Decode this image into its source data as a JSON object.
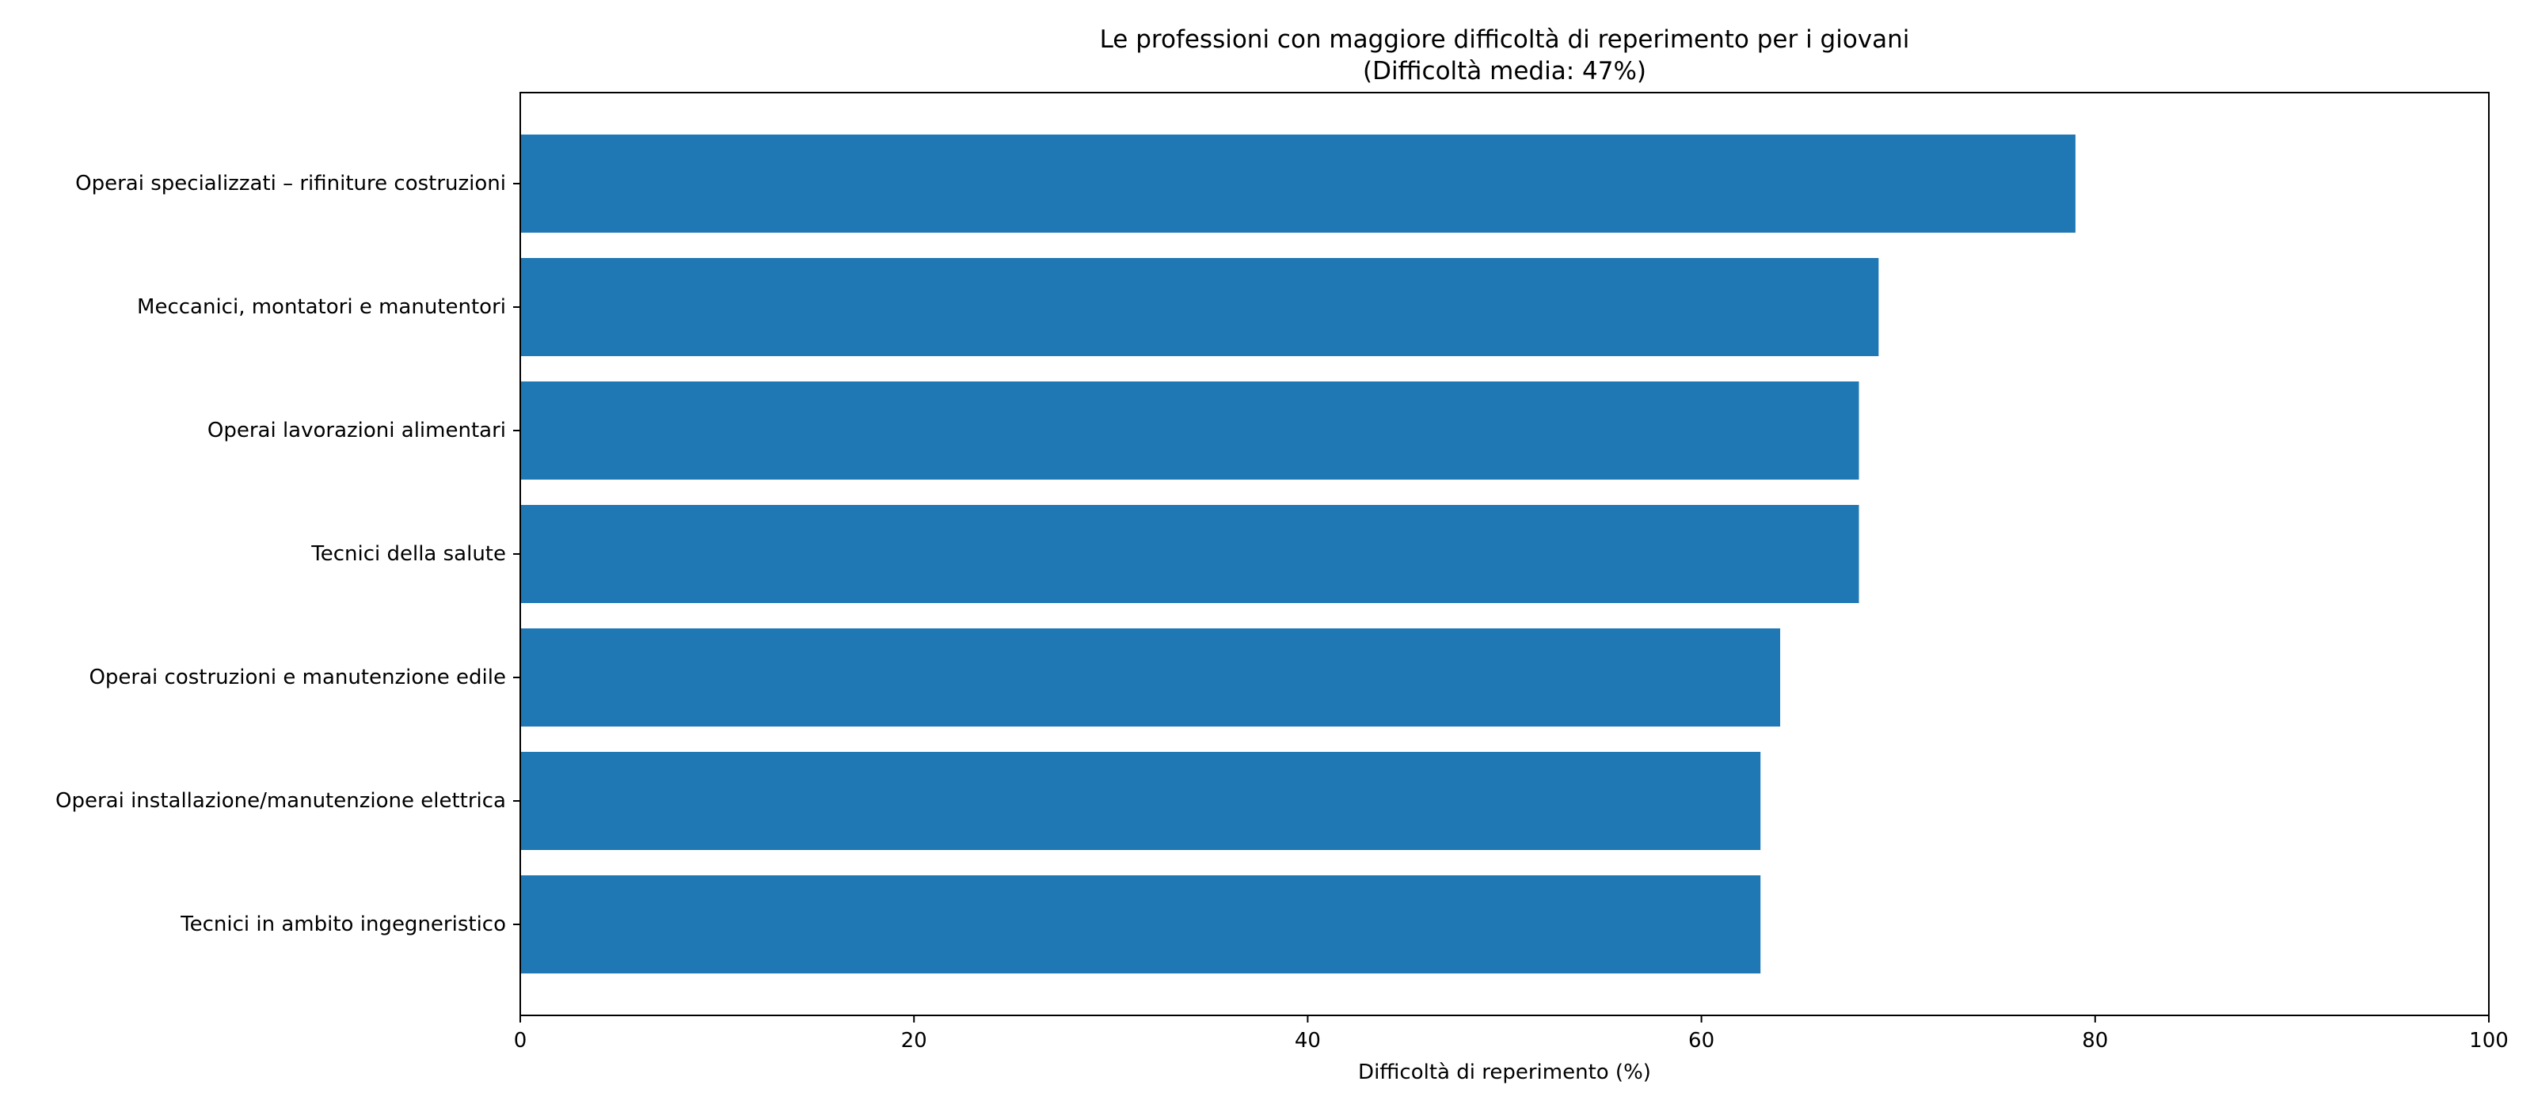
{
  "chart_data": {
    "type": "bar",
    "orientation": "horizontal",
    "title": "Le professioni con maggiore difficoltà di reperimento per i giovani",
    "subtitle": "(Difficoltà media: 47%)",
    "xlabel": "Difficoltà di reperimento (%)",
    "ylabel": "",
    "categories": [
      "Operai specializzati – rifiniture costruzioni",
      "Meccanici, montatori e manutentori",
      "Operai lavorazioni alimentari",
      "Tecnici della salute",
      "Operai costruzioni e manutenzione edile",
      "Operai installazione/manutenzione elettrica",
      "Tecnici in ambito ingegneristico"
    ],
    "values": [
      79,
      69,
      68,
      68,
      64,
      63,
      63
    ],
    "xlim": [
      0,
      100
    ],
    "xticks": [
      "0",
      "20",
      "40",
      "60",
      "80",
      "100"
    ],
    "grid": false,
    "legend": "none",
    "bar_color": "#1f77b4"
  }
}
